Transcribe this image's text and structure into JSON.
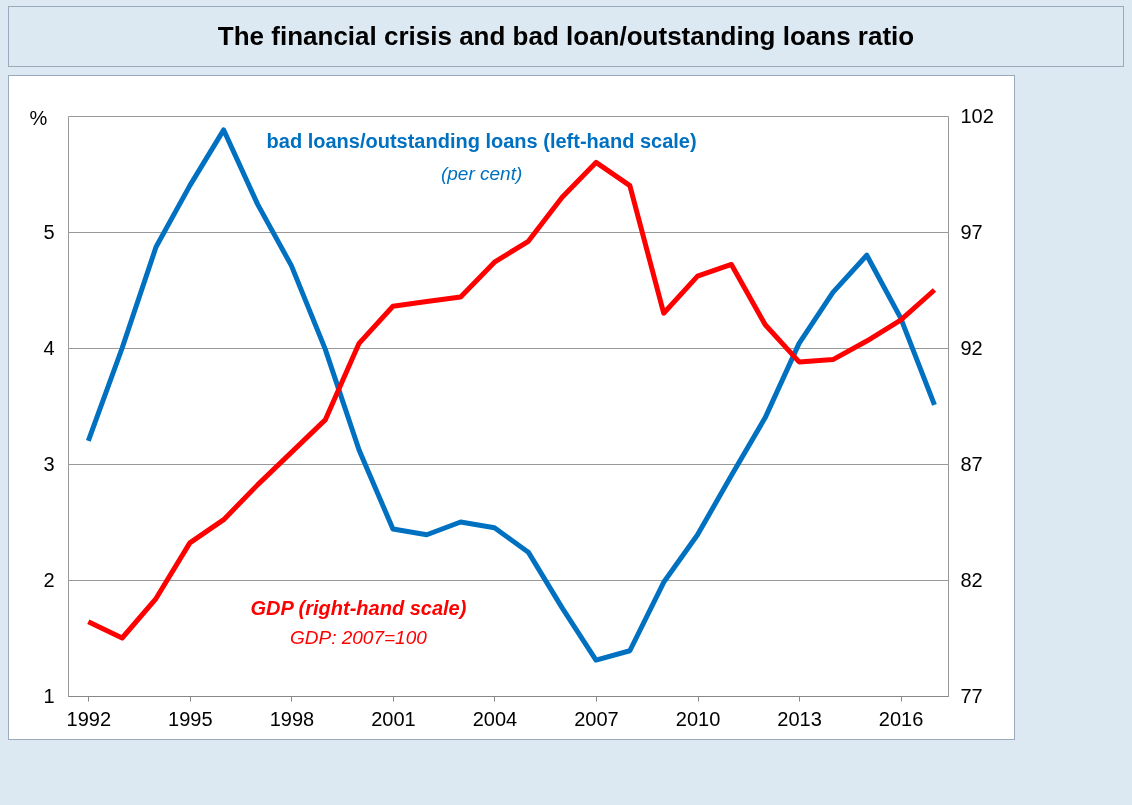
{
  "chart_data": {
    "type": "line",
    "title": "The financial crisis and bad loan/outstanding loans ratio",
    "ylabel": "%",
    "x": [
      1992,
      1993,
      1994,
      1995,
      1996,
      1997,
      1998,
      1999,
      2000,
      2001,
      2002,
      2003,
      2004,
      2005,
      2006,
      2007,
      2008,
      2009,
      2010,
      2011,
      2012,
      2013,
      2014,
      2015,
      2016,
      2017
    ],
    "series": [
      {
        "name": "bad loans/outstanding loans (left-hand scale)",
        "color": "#0070c0",
        "values": [
          3.2,
          4.0,
          4.87,
          5.4,
          5.88,
          5.24,
          4.71,
          3.99,
          3.12,
          2.44,
          2.39,
          2.5,
          2.45,
          2.24,
          1.76,
          1.31,
          1.39,
          1.98,
          2.39,
          2.9,
          3.4,
          4.04,
          4.48,
          4.8,
          4.26,
          3.51
        ]
      },
      {
        "name": "GDP (right-hand scale)",
        "color": "#ff0000",
        "axis": "y2",
        "values": [
          80.2,
          79.5,
          81.2,
          83.6,
          84.6,
          86.1,
          87.5,
          88.9,
          92.2,
          93.8,
          94.0,
          94.2,
          95.7,
          96.6,
          98.5,
          100.0,
          99.0,
          93.5,
          95.1,
          95.6,
          93.0,
          91.4,
          91.5,
          92.3,
          93.2,
          94.5
        ]
      }
    ],
    "annotations": [
      "(per cent)",
      "GDP: 2007=100"
    ],
    "xlim": [
      1991.4,
      2017.4
    ],
    "xticks": [
      1992,
      1995,
      1998,
      2001,
      2004,
      2007,
      2010,
      2013,
      2016
    ],
    "ylim": [
      1,
      6
    ],
    "yticks": [
      1,
      2,
      3,
      4,
      5
    ],
    "y2lim": [
      77,
      102
    ],
    "y2ticks": [
      77,
      82,
      87,
      92,
      97,
      102
    ],
    "grid": "y",
    "marker": "none",
    "line_style": "solid"
  }
}
